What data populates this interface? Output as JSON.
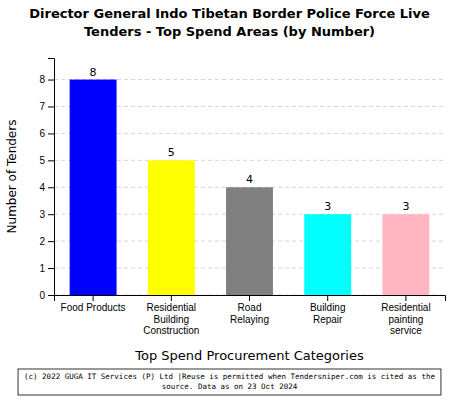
{
  "chart_data": {
    "type": "bar",
    "title": "Director General Indo Tibetan Border Police Force Live",
    "subtitle": "Tenders - Top Spend Areas (by Number)",
    "categories": [
      "Food Products",
      "Residential\nBuilding\nConstruction",
      "Road\nRelaying",
      "Building\nRepair",
      "Residential\npainting\nservice"
    ],
    "values": [
      8,
      5,
      4,
      3,
      3
    ],
    "colors": [
      "#0000ff",
      "#ffff00",
      "#808080",
      "#00ffff",
      "#ffb6c1"
    ],
    "x_label": "Top Spend Procurement Categories",
    "y_label": "Number of Tenders",
    "ylim": [
      0,
      8.8
    ],
    "yticks": [
      0,
      1,
      2,
      3,
      4,
      5,
      6,
      7,
      8
    ],
    "grid": true,
    "data_labels": true,
    "annotations": [
      "(c) 2022 GUGA IT Services (P) Ltd |Reuse is permitted when Tendersniper.com is cited as the",
      "source. Data as on 23 Oct 2024"
    ]
  }
}
